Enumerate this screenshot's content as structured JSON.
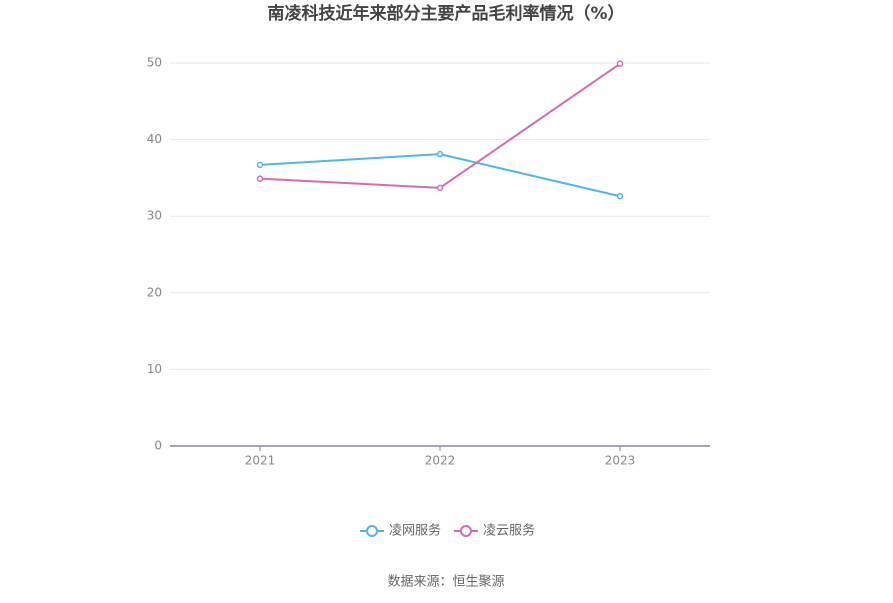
{
  "chart_data": {
    "type": "line",
    "title": "南凌科技近年来部分主要产品毛利率情况（%）",
    "categories": [
      "2021",
      "2022",
      "2023"
    ],
    "series": [
      {
        "name": "凌网服务",
        "color": "#4db8ea",
        "values": [
          36.7,
          38.1,
          32.6
        ]
      },
      {
        "name": "凌云服务",
        "color": "#d46bb3",
        "values": [
          34.9,
          33.7,
          49.9
        ]
      }
    ],
    "ylim": [
      0,
      50
    ],
    "yticks": [
      0,
      10,
      20,
      30,
      40,
      50
    ],
    "grid": true,
    "source": "数据来源：恒生聚源"
  }
}
